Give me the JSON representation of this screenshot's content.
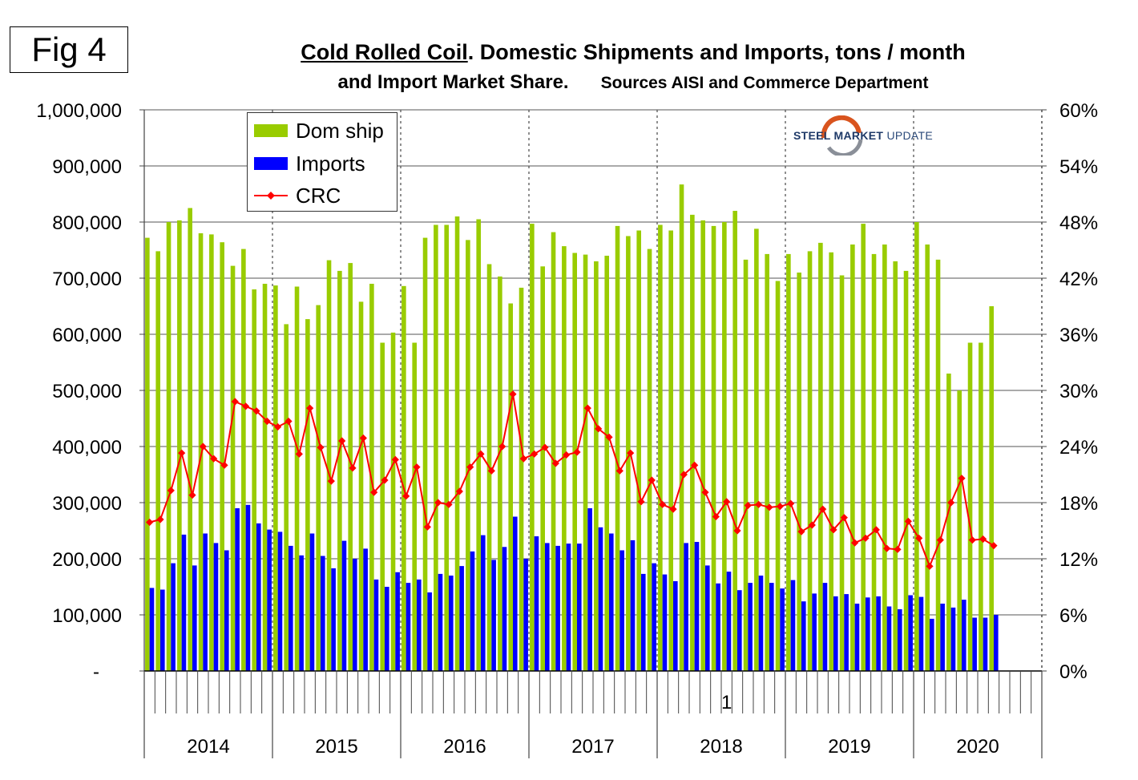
{
  "figure": {
    "label": "Fig 4"
  },
  "title": {
    "underlined": "Cold Rolled Coil",
    "line1_rest": ". Domestic Shipments and Imports, tons / month",
    "line2": "and Import  Market Share.",
    "sources": "Sources AISI and Commerce Department"
  },
  "logo": {
    "brand": "STEEL MARKET",
    "suffix": "UPDATE"
  },
  "colors": {
    "dom": "#99cc00",
    "imports": "#0000ff",
    "crc": "#ff0000"
  },
  "legend": [
    {
      "label": "Dom ship",
      "type": "bar-dom"
    },
    {
      "label": "Imports",
      "type": "bar-imports"
    },
    {
      "label": "CRC",
      "type": "line-crc"
    }
  ],
  "chart_data": {
    "type": "bar",
    "ylim": [
      0,
      1000000
    ],
    "y2lim": [
      0,
      60
    ],
    "yticks": [
      "-",
      "100,000",
      "200,000",
      "300,000",
      "400,000",
      "500,000",
      "600,000",
      "700,000",
      "800,000",
      "900,000",
      "1,000,000"
    ],
    "y2ticks": [
      "0%",
      "6%",
      "12%",
      "18%",
      "24%",
      "30%",
      "36%",
      "42%",
      "48%",
      "54%",
      "60%"
    ],
    "years": [
      "2014",
      "2015",
      "2016",
      "2017",
      "2018",
      "2019",
      "2020"
    ],
    "stray_label": "1",
    "slots": 84,
    "series": [
      {
        "name": "Dom ship",
        "kind": "bar",
        "values": [
          772000,
          748000,
          800000,
          803000,
          825000,
          780000,
          778000,
          764000,
          722000,
          752000,
          680000,
          690000,
          687000,
          618000,
          685000,
          627000,
          652000,
          732000,
          713000,
          727000,
          658000,
          690000,
          585000,
          603000,
          686000,
          585000,
          772000,
          795000,
          795000,
          810000,
          768000,
          805000,
          725000,
          703000,
          655000,
          683000,
          797000,
          721000,
          782000,
          757000,
          745000,
          742000,
          730000,
          740000,
          793000,
          775000,
          785000,
          752000,
          795000,
          785000,
          867000,
          813000,
          803000,
          793000,
          800000,
          820000,
          733000,
          788000,
          743000,
          695000,
          743000,
          710000,
          748000,
          763000,
          746000,
          705000,
          760000,
          797000,
          743000,
          760000,
          730000,
          713000,
          800000,
          760000,
          733000,
          530000,
          500000,
          585000,
          585000,
          650000
        ]
      },
      {
        "name": "Imports",
        "kind": "bar",
        "values": [
          148000,
          145000,
          192000,
          243000,
          188000,
          245000,
          228000,
          215000,
          290000,
          296000,
          263000,
          252000,
          248000,
          223000,
          206000,
          245000,
          205000,
          183000,
          232000,
          200000,
          218000,
          163000,
          150000,
          176000,
          157000,
          163000,
          140000,
          173000,
          170000,
          187000,
          213000,
          242000,
          198000,
          221000,
          275000,
          200000,
          240000,
          228000,
          223000,
          227000,
          227000,
          290000,
          256000,
          245000,
          215000,
          233000,
          173000,
          192000,
          172000,
          160000,
          228000,
          230000,
          188000,
          156000,
          177000,
          144000,
          157000,
          170000,
          157000,
          147000,
          162000,
          124000,
          138000,
          157000,
          133000,
          137000,
          120000,
          131000,
          133000,
          115000,
          110000,
          135000,
          132000,
          93000,
          120000,
          113000,
          127000,
          95000,
          95000,
          100000
        ]
      },
      {
        "name": "CRC",
        "kind": "line",
        "unit": "%",
        "values": [
          15.9,
          16.2,
          19.3,
          23.3,
          18.8,
          24.0,
          22.7,
          22.0,
          28.8,
          28.3,
          27.8,
          26.7,
          26.1,
          26.7,
          23.2,
          28.1,
          23.9,
          20.3,
          24.6,
          21.7,
          24.9,
          19.1,
          20.4,
          22.6,
          18.7,
          21.8,
          15.4,
          18.0,
          17.8,
          19.2,
          21.8,
          23.2,
          21.4,
          24.0,
          29.6,
          22.7,
          23.2,
          23.9,
          22.2,
          23.1,
          23.4,
          28.1,
          25.9,
          25.0,
          21.4,
          23.3,
          18.1,
          20.4,
          17.8,
          17.3,
          21.0,
          22.0,
          19.1,
          16.5,
          18.1,
          15.0,
          17.7,
          17.8,
          17.5,
          17.6,
          17.9,
          14.9,
          15.6,
          17.3,
          15.1,
          16.4,
          13.7,
          14.2,
          15.1,
          13.1,
          13.0,
          16.0,
          14.2,
          11.2,
          14.0,
          18.0,
          20.6,
          14.0,
          14.1,
          13.4
        ]
      }
    ]
  }
}
